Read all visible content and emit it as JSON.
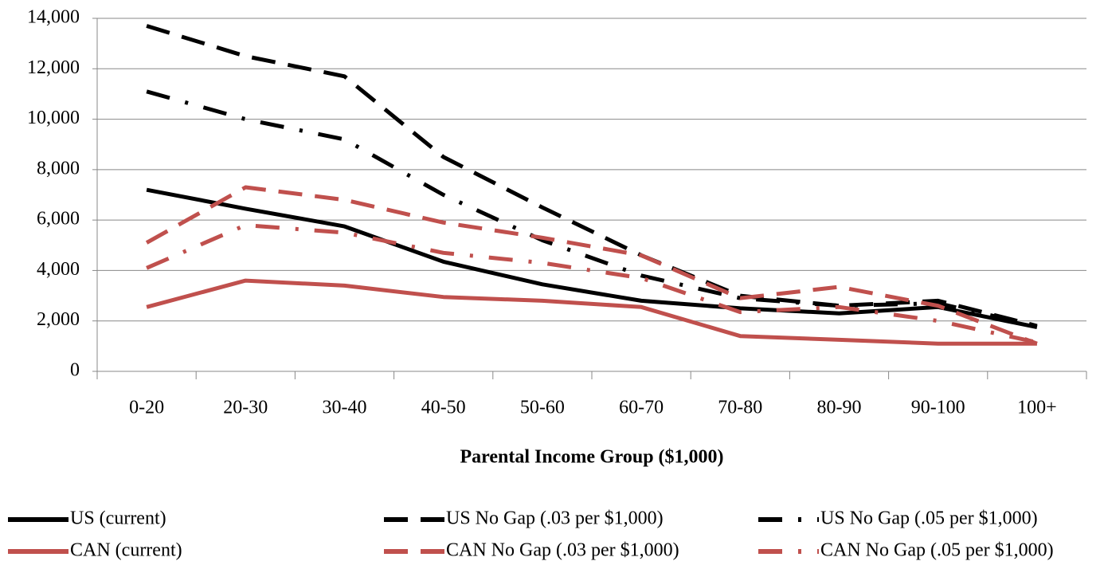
{
  "chart_data": {
    "type": "line",
    "x_label": "Parental Income Group ($1,000)",
    "categories": [
      "0-20",
      "20-30",
      "30-40",
      "40-50",
      "50-60",
      "60-70",
      "70-80",
      "80-90",
      "90-100",
      "100+"
    ],
    "ylim": [
      0,
      14000
    ],
    "yticks": [
      0,
      {
        "value": 2000,
        "label": "2,000"
      },
      {
        "value": 4000,
        "label": "4,000"
      },
      {
        "value": 6000,
        "label": "6,000"
      },
      {
        "value": 8000,
        "label": "8,000"
      },
      {
        "value": 10000,
        "label": "10,000"
      },
      {
        "value": 12000,
        "label": "12,000"
      },
      {
        "value": 14000,
        "label": "14,000"
      }
    ],
    "grid": true,
    "legend": "bottom",
    "series": [
      {
        "name": "US (current)",
        "color": "#000000",
        "dash": "solid",
        "values": [
          7200,
          6450,
          5750,
          4350,
          3450,
          2800,
          2500,
          2300,
          2550,
          1750
        ]
      },
      {
        "name": "US No Gap (.03 per $1,000)",
        "color": "#000000",
        "dash": "dash",
        "values": [
          13700,
          12500,
          11700,
          8500,
          6500,
          4600,
          3000,
          2600,
          2800,
          1800
        ]
      },
      {
        "name": "US No Gap (.05 per $1,000)",
        "color": "#000000",
        "dash": "dashdot",
        "values": [
          11100,
          10000,
          9200,
          7000,
          5200,
          3800,
          2900,
          2600,
          2700,
          1800
        ]
      },
      {
        "name": "CAN (current)",
        "color": "#c0504d",
        "dash": "solid",
        "values": [
          2550,
          3600,
          3400,
          2950,
          2800,
          2550,
          1400,
          1250,
          1100,
          1100
        ]
      },
      {
        "name": "CAN No Gap (.03 per $1,000)",
        "color": "#c0504d",
        "dash": "dash",
        "values": [
          5100,
          7300,
          6800,
          5900,
          5300,
          4600,
          2900,
          3350,
          2600,
          1100
        ]
      },
      {
        "name": "CAN No Gap (.05 per $1,000)",
        "color": "#c0504d",
        "dash": "dashdot",
        "values": [
          4100,
          5800,
          5500,
          4700,
          4300,
          3700,
          2350,
          2550,
          2000,
          1150
        ]
      }
    ]
  }
}
